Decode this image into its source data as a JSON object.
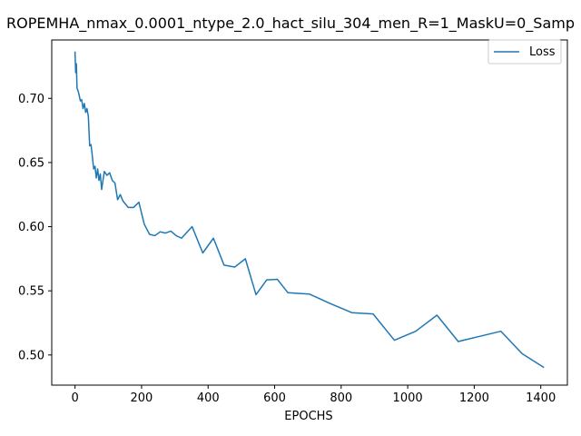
{
  "chart_data": {
    "type": "line",
    "title": "ROPEMHA_nmax_0.0001_ntype_2.0_hact_silu_304_men_R=1_MaskU=0_Samp",
    "xlabel": "EPOCHS",
    "ylabel": "",
    "xlim": [
      -70,
      1480
    ],
    "ylim": [
      0.4765,
      0.7455
    ],
    "xticks": [
      0,
      200,
      400,
      600,
      800,
      1000,
      1200,
      1400
    ],
    "yticks": [
      0.5,
      0.55,
      0.6,
      0.65,
      0.7
    ],
    "ytick_labels": [
      "0.50",
      "0.55",
      "0.60",
      "0.65",
      "0.70"
    ],
    "grid": false,
    "legend": {
      "placement": "top-right",
      "entries": [
        "Loss"
      ]
    },
    "series": [
      {
        "name": "Loss",
        "color": "#1f77b4",
        "x": [
          0,
          2,
          4,
          6,
          9,
          12,
          16,
          20,
          24,
          28,
          32,
          36,
          40,
          44,
          48,
          52,
          56,
          60,
          64,
          68,
          72,
          76,
          80,
          88,
          96,
          104,
          112,
          120,
          128,
          136,
          144,
          160,
          176,
          192,
          208,
          224,
          240,
          256,
          272,
          288,
          304,
          320,
          352,
          384,
          416,
          448,
          480,
          512,
          544,
          576,
          608,
          640,
          704,
          768,
          832,
          896,
          960,
          1024,
          1088,
          1152,
          1216,
          1280,
          1344,
          1408
        ],
        "y": [
          0.736,
          0.72,
          0.727,
          0.708,
          0.706,
          0.703,
          0.698,
          0.699,
          0.692,
          0.696,
          0.689,
          0.692,
          0.686,
          0.663,
          0.664,
          0.655,
          0.645,
          0.647,
          0.638,
          0.645,
          0.636,
          0.641,
          0.629,
          0.643,
          0.64,
          0.642,
          0.636,
          0.634,
          0.621,
          0.625,
          0.62,
          0.615,
          0.615,
          0.619,
          0.602,
          0.594,
          0.593,
          0.596,
          0.595,
          0.5965,
          0.593,
          0.591,
          0.6,
          0.5795,
          0.591,
          0.57,
          0.5685,
          0.575,
          0.547,
          0.5585,
          0.559,
          0.5485,
          0.5475,
          0.54,
          0.533,
          0.532,
          0.5115,
          0.5185,
          0.531,
          0.5105,
          0.5145,
          0.5185,
          0.501,
          0.4905
        ]
      }
    ]
  }
}
